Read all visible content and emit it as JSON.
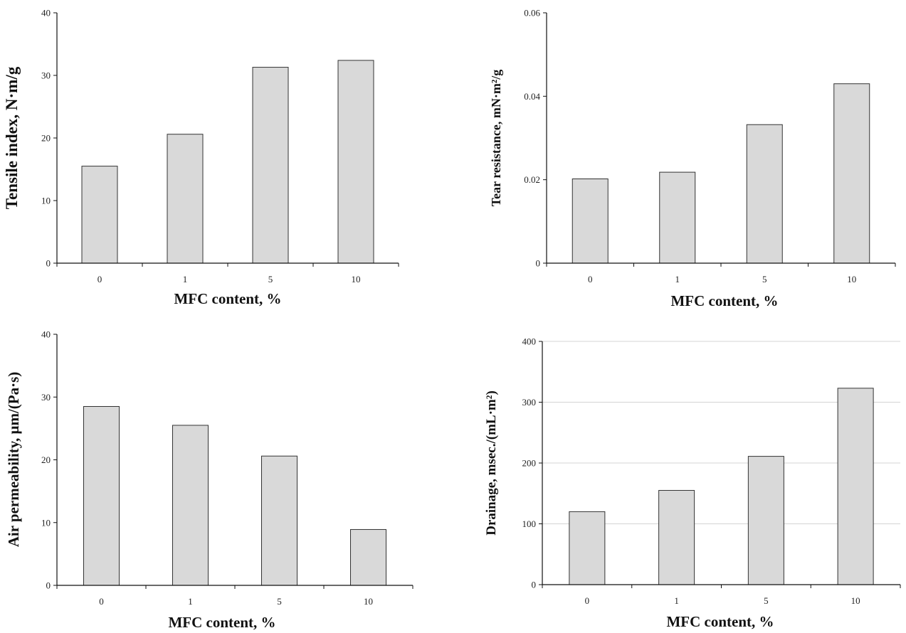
{
  "chart_data": [
    {
      "type": "bar",
      "categories": [
        "0",
        "1",
        "5",
        "10"
      ],
      "values": [
        15.5,
        20.6,
        31.3,
        32.4
      ],
      "title": "",
      "xlabel": "MFC content, %",
      "ylabel": "Tensile index, N·m/g",
      "ylim": [
        0,
        40
      ],
      "yticks": [
        "0",
        "10",
        "20",
        "30",
        "40"
      ],
      "grid": false
    },
    {
      "type": "bar",
      "categories": [
        "0",
        "1",
        "5",
        "10"
      ],
      "values": [
        0.0202,
        0.0218,
        0.0332,
        0.043
      ],
      "title": "",
      "xlabel": "MFC content, %",
      "ylabel": "Tear resistance, mN·m²/g",
      "ylim": [
        0,
        0.06
      ],
      "yticks": [
        "0",
        "0.02",
        "0.04",
        "0.06"
      ],
      "grid": false
    },
    {
      "type": "bar",
      "categories": [
        "0",
        "1",
        "5",
        "10"
      ],
      "values": [
        28.5,
        25.5,
        20.6,
        8.9
      ],
      "title": "",
      "xlabel": "MFC content, %",
      "ylabel": "Air permeability, μm/(Pa·s)",
      "ylim": [
        0,
        40
      ],
      "yticks": [
        "0",
        "10",
        "20",
        "30",
        "40"
      ],
      "grid": false
    },
    {
      "type": "bar",
      "categories": [
        "0",
        "1",
        "5",
        "10"
      ],
      "values": [
        120,
        155,
        211,
        323
      ],
      "title": "",
      "xlabel": "MFC content, %",
      "ylabel": "Drainage, msec./(mL·m²)",
      "ylim": [
        0,
        400
      ],
      "yticks": [
        "0",
        "100",
        "200",
        "300",
        "400"
      ],
      "grid": true
    }
  ]
}
